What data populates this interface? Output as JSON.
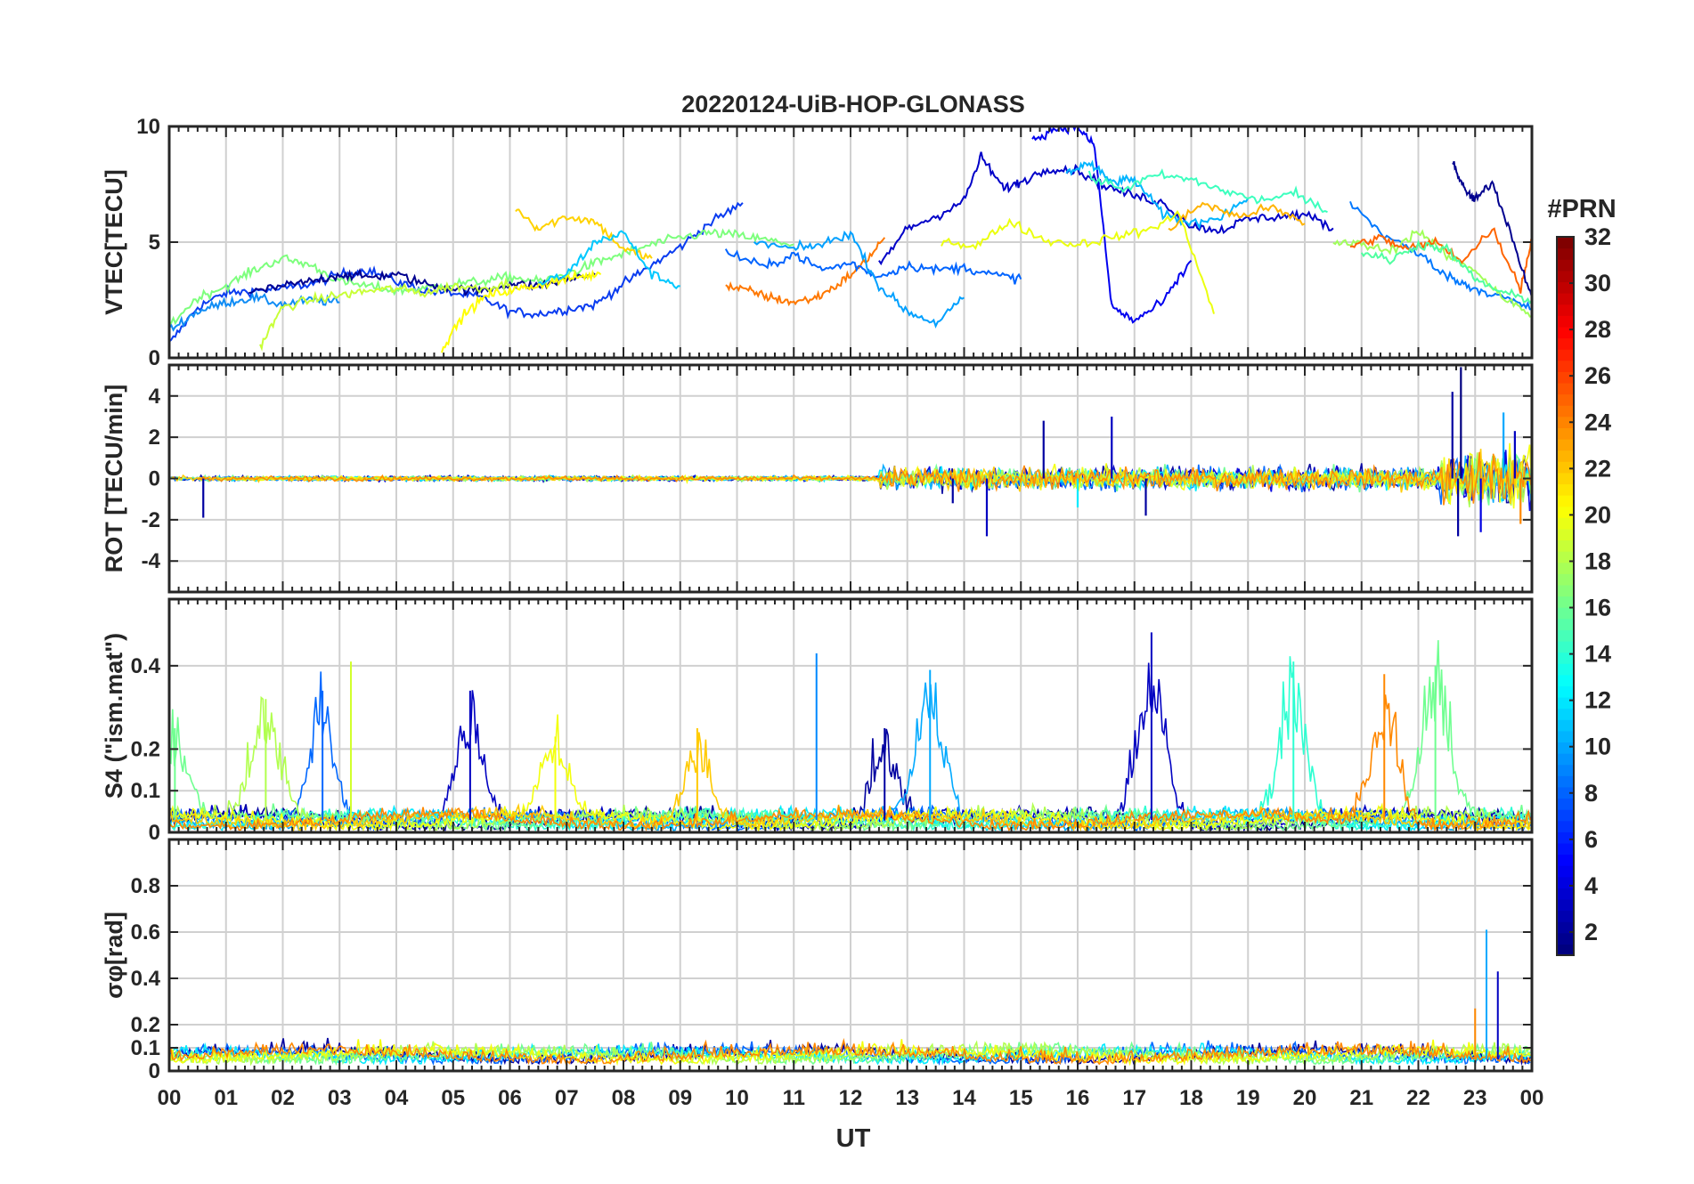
{
  "figure": {
    "title": "20220124-UiB-HOP-GLONASS",
    "xlabel": "UT",
    "x_ticks": [
      "00",
      "01",
      "02",
      "03",
      "04",
      "05",
      "06",
      "07",
      "08",
      "09",
      "10",
      "11",
      "12",
      "13",
      "14",
      "15",
      "16",
      "17",
      "18",
      "19",
      "20",
      "21",
      "22",
      "23",
      "00"
    ]
  },
  "colorbar": {
    "title": "#PRN",
    "ticks": [
      "2",
      "4",
      "6",
      "8",
      "10",
      "12",
      "14",
      "16",
      "18",
      "20",
      "22",
      "24",
      "26",
      "28",
      "30",
      "32"
    ],
    "colormap": "jet",
    "range": [
      1,
      32
    ]
  },
  "chart_data": [
    {
      "type": "line",
      "panel": "vtec",
      "ylabel": "VTEC[TECU]",
      "xlim": [
        0,
        24
      ],
      "ylim": [
        0,
        10
      ],
      "y_ticks": [
        "0",
        "5",
        "10"
      ],
      "series": [
        {
          "prn": 4,
          "color": "#0a3cf0",
          "x": [
            0.0,
            0.5,
            1,
            1.5,
            2,
            2.5,
            3,
            3.5,
            4,
            4.5,
            5,
            5.5,
            6,
            6.5,
            7,
            7.5,
            8,
            8.5,
            9,
            9.5,
            10.1
          ],
          "y": [
            0.6,
            2.2,
            2.8,
            2.9,
            3.0,
            3.2,
            3.6,
            3.8,
            3.3,
            2.9,
            2.8,
            2.6,
            2.0,
            1.9,
            2.1,
            2.3,
            3.2,
            4.0,
            4.8,
            5.8,
            6.7
          ]
        },
        {
          "prn": 8,
          "color": "#0f8cf5",
          "x": [
            0.0,
            0.5,
            1,
            1.5,
            2,
            2.5,
            3
          ],
          "y": [
            1.2,
            2.0,
            2.4,
            2.6,
            2.3,
            2.5,
            2.4
          ]
        },
        {
          "prn": 16,
          "color": "#7dff7d",
          "x": [
            0.0,
            0.5,
            1,
            1.5,
            2,
            2.5,
            3,
            3.5,
            4,
            4.5,
            5,
            5.5,
            6,
            6.5,
            7,
            7.5,
            8,
            8.5,
            9,
            9.5,
            10,
            10.5,
            11
          ],
          "y": [
            1.4,
            2.6,
            3.1,
            3.8,
            4.3,
            4.0,
            3.3,
            3.1,
            2.9,
            3.0,
            3.2,
            3.3,
            3.5,
            3.3,
            3.6,
            4.1,
            4.5,
            4.9,
            5.2,
            5.4,
            5.3,
            5.1,
            4.9
          ]
        },
        {
          "prn": 1,
          "color": "#00008f",
          "x": [
            1.4,
            2,
            2.5,
            3,
            3.5,
            4,
            4.5,
            5,
            5.5,
            6,
            6.5,
            7,
            7.5
          ],
          "y": [
            2.8,
            3.1,
            3.3,
            3.6,
            3.5,
            3.6,
            3.2,
            3.0,
            2.9,
            3.2,
            3.1,
            3.4,
            3.6
          ]
        },
        {
          "prn": 18,
          "color": "#c8ff37",
          "x": [
            1.6,
            2,
            2.5,
            3,
            3.5,
            4,
            4.5,
            5,
            5.5,
            6
          ],
          "y": [
            0.5,
            2.2,
            2.5,
            2.7,
            2.9,
            3.0,
            2.8,
            3.1,
            3.0,
            3.2
          ]
        },
        {
          "prn": 20,
          "color": "#ffff00",
          "x": [
            4.8,
            5.2,
            5.6,
            6,
            6.4,
            6.8,
            7.2,
            7.6
          ],
          "y": [
            0.4,
            1.9,
            2.7,
            2.9,
            3.1,
            3.3,
            3.5,
            3.6
          ]
        },
        {
          "prn": 21,
          "color": "#ffd200",
          "x": [
            6.1,
            6.5,
            7,
            7.5,
            8,
            8.5
          ],
          "y": [
            6.5,
            5.6,
            6.1,
            5.9,
            4.7,
            4.3
          ]
        },
        {
          "prn": 12,
          "color": "#00c8ff",
          "x": [
            6.5,
            7,
            7.5,
            8,
            8.5,
            9
          ],
          "y": [
            3.2,
            3.6,
            5.0,
            5.4,
            3.6,
            3.1
          ]
        },
        {
          "prn": 24,
          "color": "#ff7800",
          "x": [
            9.8,
            10.2,
            10.6,
            11,
            11.4,
            11.8,
            12.2,
            12.6
          ],
          "y": [
            3.1,
            2.9,
            2.6,
            2.4,
            2.6,
            3.2,
            4.0,
            5.2
          ]
        },
        {
          "prn": 7,
          "color": "#0064ff",
          "x": [
            9.8,
            10.5,
            11,
            11.5,
            12,
            12.5,
            13,
            13.5,
            14,
            14.5,
            15
          ],
          "y": [
            4.6,
            3.9,
            4.5,
            3.8,
            4.1,
            3.5,
            4.0,
            3.8,
            3.9,
            3.6,
            3.4
          ]
        },
        {
          "prn": 9,
          "color": "#00a0ff",
          "x": [
            10.3,
            11,
            11.5,
            12,
            12.5,
            13,
            13.5,
            14
          ],
          "y": [
            5.0,
            4.7,
            4.9,
            5.4,
            3.1,
            2.0,
            1.5,
            2.6
          ]
        },
        {
          "prn": 2,
          "color": "#0000c8",
          "x": [
            12.5,
            13,
            13.5,
            14,
            14.3,
            14.7,
            15,
            15.5,
            16,
            16.5,
            17,
            17.5,
            18,
            18.5,
            19,
            19.5,
            20,
            20.5
          ],
          "y": [
            4.0,
            5.6,
            6.1,
            6.8,
            8.7,
            7.3,
            7.6,
            8.2,
            8.1,
            7.4,
            7.0,
            6.7,
            5.7,
            5.5,
            6.0,
            6.1,
            6.2,
            5.6
          ]
        },
        {
          "prn": 3,
          "color": "#0000f0",
          "x": [
            15.2,
            15.6,
            16,
            16.3,
            16.6,
            17,
            17.5,
            18
          ],
          "y": [
            9.4,
            9.9,
            10,
            9.1,
            2.2,
            1.6,
            2.4,
            4.2
          ]
        },
        {
          "prn": 11,
          "color": "#00b4ff",
          "x": [
            15.8,
            16.2,
            16.6,
            17,
            17.5,
            18,
            18.5,
            19
          ],
          "y": [
            8.0,
            8.4,
            7.6,
            7.7,
            6.2,
            5.8,
            6.1,
            6.9
          ]
        },
        {
          "prn": 14,
          "color": "#3cffbe",
          "x": [
            16.2,
            16.8,
            17.4,
            18,
            18.6,
            19.2,
            19.8,
            20.4
          ],
          "y": [
            7.8,
            7.3,
            7.9,
            7.7,
            7.2,
            6.8,
            7.1,
            6.3
          ]
        },
        {
          "prn": 19,
          "color": "#ebff0f",
          "x": [
            13.6,
            14.2,
            14.8,
            15.4,
            16,
            16.6,
            17.2,
            17.8,
            18.4
          ],
          "y": [
            5.1,
            4.8,
            5.9,
            5.1,
            4.9,
            5.2,
            5.5,
            6.2,
            1.9
          ]
        },
        {
          "prn": 22,
          "color": "#ffb400",
          "x": [
            17.6,
            18.2,
            18.8,
            19.4,
            20
          ],
          "y": [
            5.5,
            6.7,
            6.1,
            6.5,
            5.8
          ]
        },
        {
          "prn": 10,
          "color": "#0078ff",
          "x": [
            20.8,
            21.4,
            22,
            22.6,
            23,
            23.5,
            24
          ],
          "y": [
            6.7,
            5.3,
            4.5,
            3.4,
            3.0,
            2.6,
            2.1
          ]
        },
        {
          "prn": 17,
          "color": "#a0ff5a",
          "x": [
            20.5,
            21,
            21.5,
            22,
            22.5,
            23,
            23.5,
            24
          ],
          "y": [
            5.0,
            4.9,
            4.6,
            5.5,
            4.4,
            3.8,
            2.6,
            1.8
          ]
        },
        {
          "prn": 25,
          "color": "#ff6400",
          "x": [
            20.8,
            21.3,
            21.8,
            22.3,
            22.8,
            23.3,
            23.8,
            24
          ],
          "y": [
            4.8,
            5.2,
            4.7,
            5.0,
            4.2,
            5.6,
            3.0,
            5.1
          ]
        },
        {
          "prn": 15,
          "color": "#50ffa0",
          "x": [
            21,
            21.5,
            22,
            22.5,
            23,
            23.5,
            24
          ],
          "y": [
            4.6,
            4.2,
            4.9,
            4.7,
            3.4,
            2.8,
            2.5
          ]
        },
        {
          "prn": 1,
          "color": "#00008f",
          "x": [
            22.6,
            22.8,
            23,
            23.3,
            23.6,
            24
          ],
          "y": [
            8.5,
            7.3,
            6.8,
            7.6,
            5.6,
            2.6
          ]
        }
      ]
    },
    {
      "type": "line",
      "panel": "rot",
      "ylabel": "ROT [TECU/min]",
      "xlim": [
        0,
        24
      ],
      "ylim": [
        -5.5,
        5.5
      ],
      "y_ticks": [
        "-4",
        "-2",
        "0",
        "2",
        "4"
      ],
      "spikes": [
        {
          "x": 0.6,
          "y": -1.9,
          "prn": 2
        },
        {
          "x": 13.8,
          "y": -1.2,
          "prn": 2
        },
        {
          "x": 14.4,
          "y": -2.8,
          "prn": 3
        },
        {
          "x": 15.4,
          "y": 2.8,
          "prn": 2
        },
        {
          "x": 16.6,
          "y": 3.0,
          "prn": 3
        },
        {
          "x": 16.0,
          "y": -1.4,
          "prn": 12
        },
        {
          "x": 17.2,
          "y": -1.8,
          "prn": 2
        },
        {
          "x": 22.6,
          "y": 4.2,
          "prn": 2
        },
        {
          "x": 22.7,
          "y": -2.8,
          "prn": 2
        },
        {
          "x": 22.75,
          "y": 5.4,
          "prn": 1
        },
        {
          "x": 23.1,
          "y": -2.6,
          "prn": 4
        },
        {
          "x": 23.5,
          "y": 3.2,
          "prn": 10
        },
        {
          "x": 23.7,
          "y": 2.3,
          "prn": 3
        },
        {
          "x": 23.8,
          "y": -2.2,
          "prn": 24
        }
      ]
    },
    {
      "type": "line",
      "panel": "s4",
      "ylabel": "S4 (\"ism.mat\")",
      "xlim": [
        0,
        24
      ],
      "ylim": [
        0,
        0.56
      ],
      "y_ticks": [
        "0",
        "0.1",
        "0.2",
        "0.4"
      ],
      "peaks": [
        {
          "x": 0.1,
          "y": 0.25,
          "prn": 16
        },
        {
          "x": 1.7,
          "y": 0.32,
          "prn": 18
        },
        {
          "x": 2.7,
          "y": 0.34,
          "prn": 8
        },
        {
          "x": 3.2,
          "y": 0.41,
          "prn": 19
        },
        {
          "x": 5.3,
          "y": 0.34,
          "prn": 3
        },
        {
          "x": 6.8,
          "y": 0.23,
          "prn": 20
        },
        {
          "x": 9.3,
          "y": 0.25,
          "prn": 22
        },
        {
          "x": 11.4,
          "y": 0.43,
          "prn": 9
        },
        {
          "x": 12.6,
          "y": 0.25,
          "prn": 2
        },
        {
          "x": 13.4,
          "y": 0.39,
          "prn": 10
        },
        {
          "x": 17.3,
          "y": 0.48,
          "prn": 3
        },
        {
          "x": 19.8,
          "y": 0.41,
          "prn": 14
        },
        {
          "x": 21.4,
          "y": 0.38,
          "prn": 24
        },
        {
          "x": 22.3,
          "y": 0.4,
          "prn": 16
        }
      ]
    },
    {
      "type": "line",
      "panel": "sigma_phi",
      "ylabel": "σφ[rad]",
      "xlim": [
        0,
        24
      ],
      "ylim": [
        0,
        1.0
      ],
      "y_ticks": [
        "0",
        "0.1",
        "0.2",
        "0.4",
        "0.6",
        "0.8"
      ],
      "peaks": [
        {
          "x": 23.2,
          "y": 0.61,
          "prn": 10
        },
        {
          "x": 23.4,
          "y": 0.43,
          "prn": 3
        },
        {
          "x": 23.0,
          "y": 0.27,
          "prn": 24
        }
      ]
    }
  ]
}
